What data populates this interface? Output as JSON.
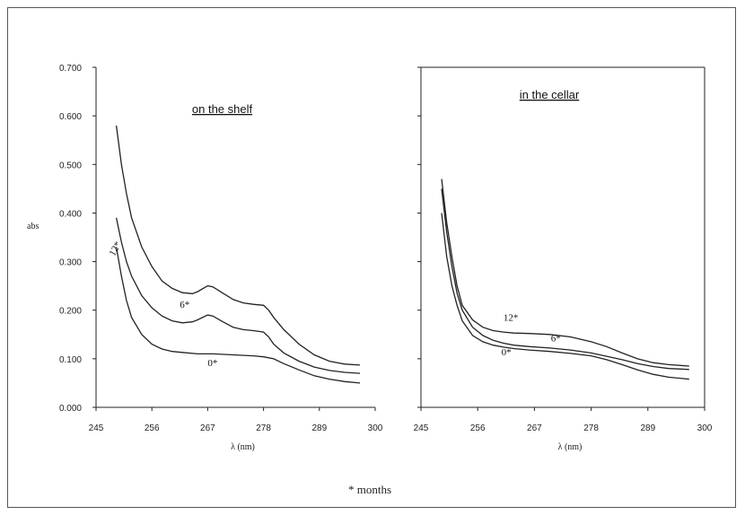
{
  "chart_data": [
    {
      "type": "line",
      "title": "on the shelf",
      "xlabel": "λ (nm)",
      "ylabel": "abs",
      "xlim": [
        245,
        300
      ],
      "ylim": [
        0,
        0.7
      ],
      "xticks": [
        "245",
        "256",
        "267",
        "278",
        "289",
        "300"
      ],
      "yticks": [
        "0.000",
        "0.100",
        "0.200",
        "0.300",
        "0.400",
        "0.500",
        "0.600",
        "0.700"
      ],
      "grid": false,
      "series": [
        {
          "name": "12*",
          "x": [
            249,
            250,
            251,
            252,
            254,
            256,
            258,
            260,
            262,
            264,
            265,
            267,
            268,
            270,
            272,
            274,
            276,
            278,
            279,
            280,
            282,
            285,
            288,
            291,
            294,
            297
          ],
          "values": [
            0.58,
            0.5,
            0.44,
            0.39,
            0.33,
            0.29,
            0.26,
            0.245,
            0.236,
            0.234,
            0.238,
            0.25,
            0.248,
            0.235,
            0.222,
            0.215,
            0.212,
            0.21,
            0.2,
            0.185,
            0.16,
            0.13,
            0.108,
            0.095,
            0.089,
            0.087
          ]
        },
        {
          "name": "6*",
          "x": [
            249,
            250,
            251,
            252,
            254,
            256,
            258,
            260,
            262,
            264,
            265,
            267,
            268,
            270,
            272,
            274,
            276,
            278,
            279,
            280,
            282,
            285,
            288,
            291,
            294,
            297
          ],
          "values": [
            0.39,
            0.34,
            0.3,
            0.27,
            0.23,
            0.205,
            0.188,
            0.178,
            0.174,
            0.176,
            0.18,
            0.19,
            0.188,
            0.176,
            0.165,
            0.16,
            0.158,
            0.155,
            0.145,
            0.13,
            0.112,
            0.095,
            0.083,
            0.076,
            0.072,
            0.07
          ]
        },
        {
          "name": "0*",
          "x": [
            249,
            250,
            251,
            252,
            254,
            256,
            258,
            260,
            262,
            265,
            268,
            272,
            276,
            278,
            280,
            282,
            285,
            288,
            291,
            294,
            297
          ],
          "values": [
            0.33,
            0.27,
            0.22,
            0.185,
            0.15,
            0.13,
            0.12,
            0.115,
            0.113,
            0.11,
            0.11,
            0.108,
            0.106,
            0.104,
            0.1,
            0.09,
            0.077,
            0.065,
            0.058,
            0.053,
            0.05
          ]
        }
      ]
    },
    {
      "type": "line",
      "title": "in the cellar",
      "xlabel": "λ (nm)",
      "ylabel": "",
      "xlim": [
        245,
        300
      ],
      "ylim": [
        0,
        0.7
      ],
      "xticks": [
        "245",
        "256",
        "267",
        "278",
        "289",
        "300"
      ],
      "yticks": [],
      "grid": false,
      "series": [
        {
          "name": "12*",
          "x": [
            249,
            250,
            251,
            252,
            253,
            255,
            257,
            259,
            261,
            263,
            266,
            270,
            274,
            278,
            281,
            284,
            287,
            290,
            293,
            297
          ],
          "values": [
            0.47,
            0.38,
            0.31,
            0.25,
            0.21,
            0.18,
            0.165,
            0.158,
            0.155,
            0.153,
            0.152,
            0.15,
            0.145,
            0.135,
            0.125,
            0.112,
            0.1,
            0.092,
            0.088,
            0.085
          ]
        },
        {
          "name": "6*",
          "x": [
            249,
            250,
            251,
            252,
            253,
            255,
            257,
            259,
            261,
            263,
            266,
            270,
            274,
            278,
            281,
            284,
            287,
            290,
            293,
            297
          ],
          "values": [
            0.45,
            0.36,
            0.29,
            0.235,
            0.2,
            0.165,
            0.148,
            0.138,
            0.132,
            0.128,
            0.125,
            0.122,
            0.118,
            0.112,
            0.105,
            0.098,
            0.09,
            0.084,
            0.08,
            0.078
          ]
        },
        {
          "name": "0*",
          "x": [
            249,
            250,
            251,
            252,
            253,
            255,
            257,
            259,
            261,
            263,
            266,
            270,
            274,
            278,
            281,
            284,
            287,
            290,
            293,
            297
          ],
          "values": [
            0.4,
            0.31,
            0.25,
            0.21,
            0.178,
            0.148,
            0.135,
            0.128,
            0.124,
            0.121,
            0.118,
            0.115,
            0.111,
            0.106,
            0.098,
            0.088,
            0.077,
            0.068,
            0.062,
            0.058
          ]
        }
      ]
    }
  ],
  "footnote": "* months"
}
